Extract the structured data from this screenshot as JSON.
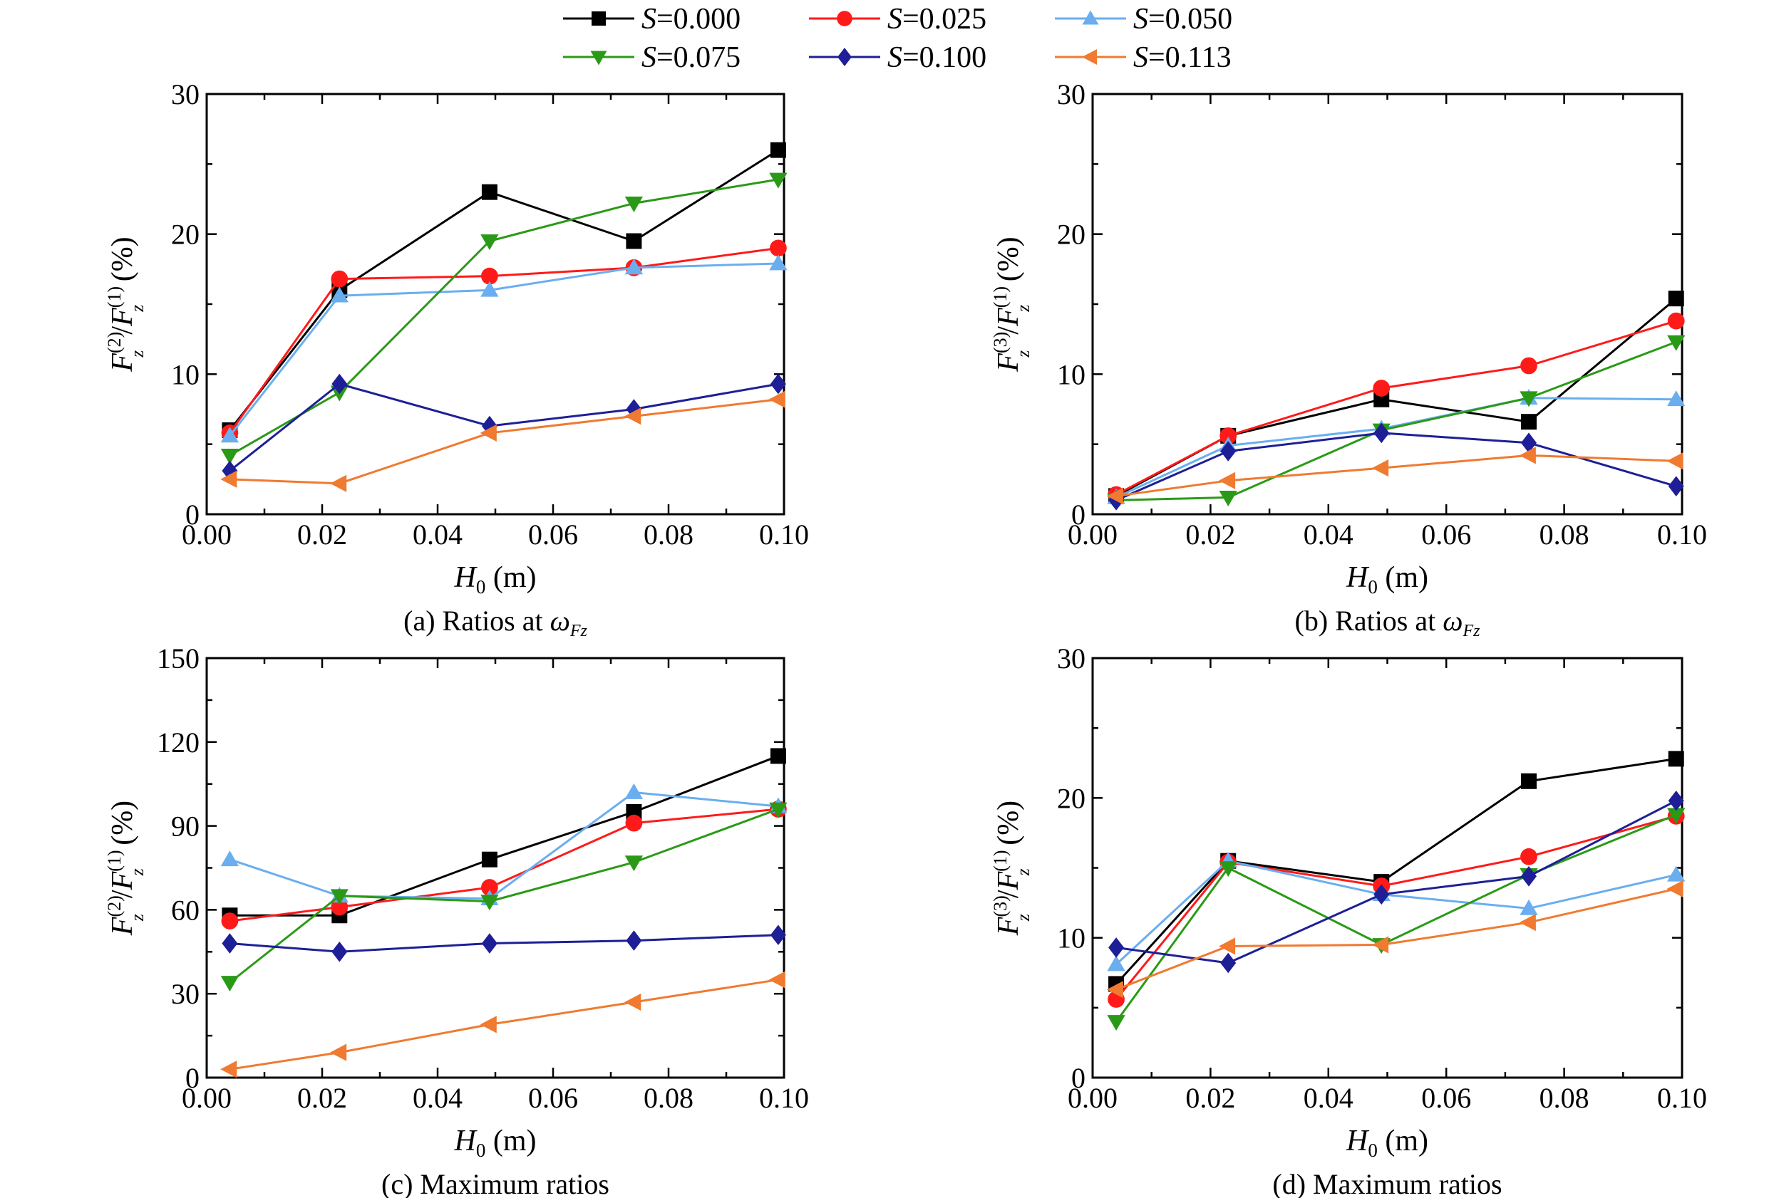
{
  "legend": {
    "position": "top-center",
    "entries": [
      {
        "var": "S",
        "value": "=0.000",
        "color": "#000000",
        "marker": "square"
      },
      {
        "var": "S",
        "value": "=0.025",
        "color": "#ff1a1a",
        "marker": "circle"
      },
      {
        "var": "S",
        "value": "=0.050",
        "color": "#6aaef0",
        "marker": "triangle-up"
      },
      {
        "var": "S",
        "value": "=0.075",
        "color": "#2a9a16",
        "marker": "triangle-down"
      },
      {
        "var": "S",
        "value": "=0.100",
        "color": "#1e1f96",
        "marker": "diamond"
      },
      {
        "var": "S",
        "value": "=0.113",
        "color": "#f07a30",
        "marker": "triangle-left"
      }
    ]
  },
  "chart_data": [
    {
      "id": "a",
      "type": "line",
      "caption": {
        "text": "(a) Ratios at ",
        "symbol": "ω",
        "sub": "Fz"
      },
      "xlabel": {
        "main": "H",
        "sub": "0",
        "unit": " (m)"
      },
      "ylabel": {
        "main1": "F",
        "sup1": "(2)",
        "sub1": "z",
        "slash": "/",
        "main2": "F",
        "sup2": "(1)",
        "sub2": "z",
        "unit": " (%)"
      },
      "xlim": [
        0.0,
        0.1
      ],
      "ylim": [
        0,
        30
      ],
      "xticks": [
        "0.00",
        "0.02",
        "0.04",
        "0.06",
        "0.08",
        "0.10"
      ],
      "yticks": [
        "0",
        "10",
        "20",
        "30"
      ],
      "x": [
        0.004,
        0.023,
        0.049,
        0.074,
        0.099
      ],
      "series": [
        {
          "name": "S=0.000",
          "values": [
            6.0,
            16.0,
            23.0,
            19.5,
            26.0
          ]
        },
        {
          "name": "S=0.025",
          "values": [
            5.8,
            16.8,
            17.0,
            17.6,
            19.0
          ]
        },
        {
          "name": "S=0.050",
          "values": [
            5.6,
            15.6,
            16.0,
            17.6,
            17.9
          ]
        },
        {
          "name": "S=0.075",
          "values": [
            4.2,
            8.7,
            19.5,
            22.2,
            23.9
          ]
        },
        {
          "name": "S=0.100",
          "values": [
            3.1,
            9.3,
            6.3,
            7.5,
            9.3
          ]
        },
        {
          "name": "S=0.113",
          "values": [
            2.5,
            2.2,
            5.8,
            7.0,
            8.2
          ]
        }
      ]
    },
    {
      "id": "b",
      "type": "line",
      "caption": {
        "text": "(b) Ratios at ",
        "symbol": "ω",
        "sub": "Fz"
      },
      "xlabel": {
        "main": "H",
        "sub": "0",
        "unit": " (m)"
      },
      "ylabel": {
        "main1": "F",
        "sup1": "(3)",
        "sub1": "z",
        "slash": "/",
        "main2": "F",
        "sup2": "(1)",
        "sub2": "z",
        "unit": " (%)"
      },
      "xlim": [
        0.0,
        0.1
      ],
      "ylim": [
        0,
        30
      ],
      "xticks": [
        "0.00",
        "0.02",
        "0.04",
        "0.06",
        "0.08",
        "0.10"
      ],
      "yticks": [
        "0",
        "10",
        "20",
        "30"
      ],
      "x": [
        0.004,
        0.023,
        0.049,
        0.074,
        0.099
      ],
      "series": [
        {
          "name": "S=0.000",
          "values": [
            1.3,
            5.6,
            8.2,
            6.6,
            15.4
          ]
        },
        {
          "name": "S=0.025",
          "values": [
            1.4,
            5.6,
            9.0,
            10.6,
            13.8
          ]
        },
        {
          "name": "S=0.050",
          "values": [
            1.2,
            4.9,
            6.1,
            8.3,
            8.2
          ]
        },
        {
          "name": "S=0.075",
          "values": [
            1.0,
            1.2,
            6.0,
            8.3,
            12.3
          ]
        },
        {
          "name": "S=0.100",
          "values": [
            1.0,
            4.5,
            5.8,
            5.1,
            2.0
          ]
        },
        {
          "name": "S=0.113",
          "values": [
            1.3,
            2.4,
            3.3,
            4.2,
            3.8
          ]
        }
      ]
    },
    {
      "id": "c",
      "type": "line",
      "caption": {
        "text": "(c) Maximum ratios"
      },
      "xlabel": {
        "main": "H",
        "sub": "0",
        "unit": " (m)"
      },
      "ylabel": {
        "main1": "F",
        "sup1": "(2)",
        "sub1": "z",
        "slash": "/",
        "main2": "F",
        "sup2": "(1)",
        "sub2": "z",
        "unit": " (%)"
      },
      "xlim": [
        0.0,
        0.1
      ],
      "ylim": [
        0,
        150
      ],
      "xticks": [
        "0.00",
        "0.02",
        "0.04",
        "0.06",
        "0.08",
        "0.10"
      ],
      "yticks": [
        "0",
        "30",
        "60",
        "90",
        "120",
        "150"
      ],
      "x": [
        0.004,
        0.023,
        0.049,
        0.074,
        0.099
      ],
      "series": [
        {
          "name": "S=0.000",
          "values": [
            58,
            58,
            78,
            95,
            115
          ]
        },
        {
          "name": "S=0.025",
          "values": [
            56,
            61,
            68,
            91,
            96
          ]
        },
        {
          "name": "S=0.050",
          "values": [
            78,
            65,
            64,
            102,
            97
          ]
        },
        {
          "name": "S=0.075",
          "values": [
            34,
            65,
            63,
            77,
            96
          ]
        },
        {
          "name": "S=0.100",
          "values": [
            48,
            45,
            48,
            49,
            51
          ]
        },
        {
          "name": "S=0.113",
          "values": [
            3,
            9,
            19,
            27,
            35
          ]
        }
      ]
    },
    {
      "id": "d",
      "type": "line",
      "caption": {
        "text": "(d) Maximum ratios"
      },
      "xlabel": {
        "main": "H",
        "sub": "0",
        "unit": " (m)"
      },
      "ylabel": {
        "main1": "F",
        "sup1": "(3)",
        "sub1": "z",
        "slash": "/",
        "main2": "F",
        "sup2": "(1)",
        "sub2": "z",
        "unit": " (%)"
      },
      "xlim": [
        0.0,
        0.1
      ],
      "ylim": [
        0,
        30
      ],
      "xticks": [
        "0.00",
        "0.02",
        "0.04",
        "0.06",
        "0.08",
        "0.10"
      ],
      "yticks": [
        "0",
        "10",
        "20",
        "30"
      ],
      "x": [
        0.004,
        0.023,
        0.049,
        0.074,
        0.099
      ],
      "series": [
        {
          "name": "S=0.000",
          "values": [
            6.7,
            15.5,
            14.0,
            21.2,
            22.8
          ]
        },
        {
          "name": "S=0.025",
          "values": [
            5.6,
            15.4,
            13.7,
            15.8,
            18.7
          ]
        },
        {
          "name": "S=0.050",
          "values": [
            8.1,
            15.5,
            13.1,
            12.1,
            14.5
          ]
        },
        {
          "name": "S=0.075",
          "values": [
            4.0,
            15.0,
            9.5,
            14.5,
            18.8
          ]
        },
        {
          "name": "S=0.100",
          "values": [
            9.3,
            8.2,
            13.1,
            14.4,
            19.8
          ]
        },
        {
          "name": "S=0.113",
          "values": [
            6.3,
            9.4,
            9.5,
            11.1,
            13.5
          ]
        }
      ]
    }
  ]
}
